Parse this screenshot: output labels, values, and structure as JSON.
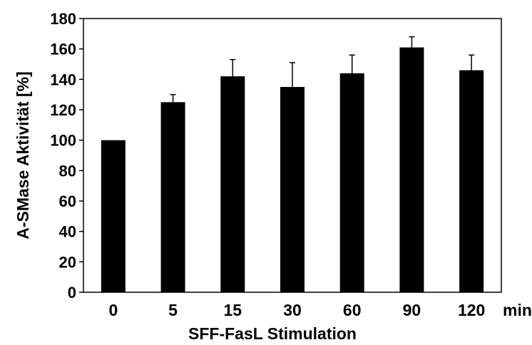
{
  "chart_data": {
    "type": "bar",
    "categories": [
      "0",
      "5",
      "15",
      "30",
      "60",
      "90",
      "120"
    ],
    "values": [
      100,
      125,
      142,
      135,
      144,
      161,
      146
    ],
    "error_upper": [
      0,
      5,
      11,
      16,
      12,
      7,
      10
    ],
    "title": "",
    "xlabel": "SFF-FasL Stimulation",
    "x_unit": "min",
    "ylabel": "A-SMase Aktivität [%]",
    "ylim": [
      0,
      180
    ],
    "yticks": [
      0,
      20,
      40,
      60,
      80,
      100,
      120,
      140,
      160,
      180
    ],
    "grid": false,
    "legend": "none",
    "bar_color": "#000000"
  }
}
